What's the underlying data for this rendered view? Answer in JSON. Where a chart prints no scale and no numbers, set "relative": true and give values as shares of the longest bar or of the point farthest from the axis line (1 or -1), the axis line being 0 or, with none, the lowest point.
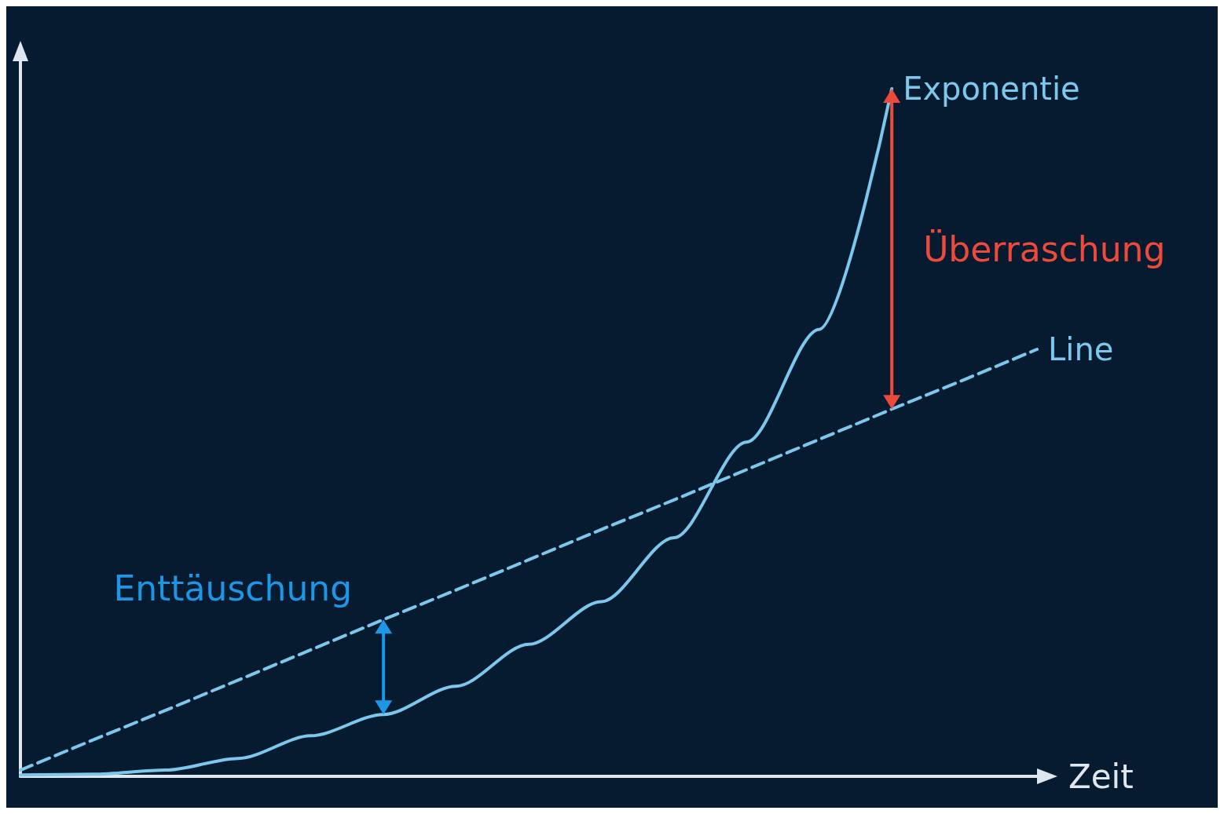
{
  "chart_data": {
    "type": "line",
    "relative": true,
    "xlabel": "Zeit",
    "categories": [
      null,
      null,
      null,
      null,
      null,
      null,
      null,
      null,
      null,
      null,
      null,
      null,
      null,
      null,
      null
    ],
    "series": [
      {
        "name": "Exponentie",
        "color": "#7cc8ec",
        "line_style": "solid",
        "values": [
          0.002,
          0.003,
          0.009,
          0.026,
          0.059,
          0.09,
          0.131,
          0.192,
          0.254,
          0.347,
          0.486,
          0.65,
          1,
          null,
          null
        ]
      },
      {
        "name": "Line",
        "color": "#7cc8ec",
        "line_style": "dashed",
        "values": [
          0.009,
          0.053,
          0.096,
          0.14,
          0.184,
          0.228,
          0.271,
          0.315,
          0.359,
          0.402,
          0.446,
          0.49,
          0.534,
          0.577,
          0.621
        ]
      }
    ],
    "annotations": [
      "Enttäuschung",
      "Überraschung"
    ],
    "grid": false,
    "legend": false,
    "marker": "none"
  }
}
